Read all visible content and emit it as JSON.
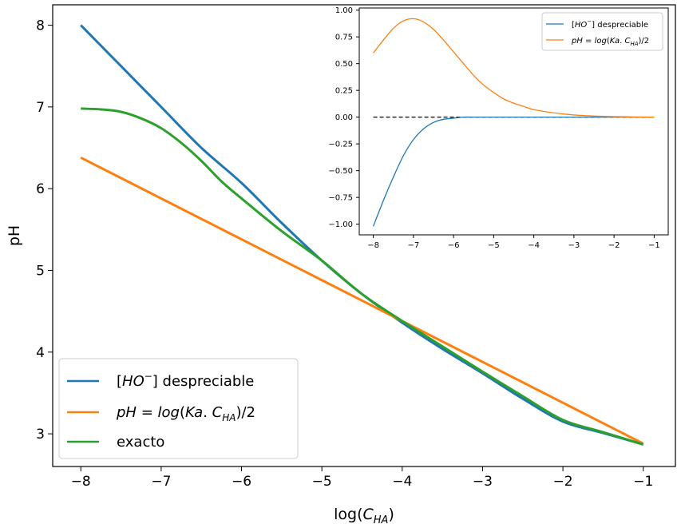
{
  "colors": {
    "despreciable": "#1f77b4",
    "aproximada": "#ff7f0e",
    "exacto": "#2ca02c",
    "reference": "#000000"
  },
  "chart_data": [
    {
      "type": "line",
      "xlabel": "log(C_HA)",
      "ylabel": "pH",
      "xlim": [
        -8.35,
        -0.6
      ],
      "ylim": [
        2.6,
        8.25
      ],
      "xticks": [
        -8,
        -7,
        -6,
        -5,
        -4,
        -3,
        -2,
        -1
      ],
      "yticks": [
        3,
        4,
        5,
        6,
        7,
        8
      ],
      "xtick_labels": [
        "−8",
        "−7",
        "−6",
        "−5",
        "−4",
        "−3",
        "−2",
        "−1"
      ],
      "ytick_labels": [
        "3",
        "4",
        "5",
        "6",
        "7",
        "8"
      ],
      "legend_position": "lower-left",
      "series": [
        {
          "name": "[HO⁻] despreciable",
          "color_key": "despreciable",
          "x": [
            -8,
            -7.5,
            -7,
            -6.5,
            -6,
            -5.5,
            -5,
            -4.5,
            -4,
            -3.5,
            -3,
            -2.5,
            -2,
            -1.5,
            -1
          ],
          "y": [
            8.0,
            7.5,
            7.0,
            6.5,
            6.07,
            5.58,
            5.12,
            4.71,
            4.36,
            4.04,
            3.74,
            3.43,
            3.15,
            3.01,
            2.87
          ]
        },
        {
          "name": "pH = log(Ka.C_HA)/2",
          "color_key": "aproximada",
          "x": [
            -8,
            -7,
            -6,
            -5,
            -4,
            -3,
            -2,
            -1
          ],
          "y": [
            6.38,
            5.88,
            5.38,
            4.88,
            4.38,
            3.88,
            3.38,
            2.88
          ]
        },
        {
          "name": "exacto",
          "color_key": "exacto",
          "x": [
            -8,
            -7.75,
            -7.5,
            -7.25,
            -7,
            -6.75,
            -6.5,
            -6.25,
            -6,
            -5.5,
            -5,
            -4.5,
            -4,
            -3.5,
            -3,
            -2.5,
            -2,
            -1.5,
            -1
          ],
          "y": [
            6.98,
            6.97,
            6.94,
            6.86,
            6.74,
            6.56,
            6.34,
            6.09,
            5.88,
            5.48,
            5.12,
            4.71,
            4.38,
            4.07,
            3.76,
            3.46,
            3.17,
            3.02,
            2.87
          ]
        }
      ]
    },
    {
      "type": "line",
      "xlim": [
        -8.35,
        -0.65
      ],
      "ylim": [
        -1.1,
        1.02
      ],
      "xticks": [
        -8,
        -7,
        -6,
        -5,
        -4,
        -3,
        -2,
        -1
      ],
      "yticks": [
        -1.0,
        -0.75,
        -0.5,
        -0.25,
        0.0,
        0.25,
        0.5,
        0.75,
        1.0
      ],
      "xtick_labels": [
        "−8",
        "−7",
        "−6",
        "−5",
        "−4",
        "−3",
        "−2",
        "−1"
      ],
      "ytick_labels": [
        "−1.00",
        "−0.75",
        "−0.50",
        "−0.25",
        "0.00",
        "0.25",
        "0.50",
        "0.75",
        "1.00"
      ],
      "legend_position": "top-right",
      "reference_line": {
        "y": 0,
        "style": "dashed"
      },
      "series": [
        {
          "name": "[HO⁻] despreciable",
          "color_key": "despreciable",
          "x": [
            -8,
            -7.75,
            -7.5,
            -7.25,
            -7,
            -6.75,
            -6.5,
            -6.25,
            -6,
            -5.75,
            -5.5,
            -5,
            -4,
            -3,
            -2,
            -1
          ],
          "y": [
            -1.02,
            -0.78,
            -0.56,
            -0.36,
            -0.21,
            -0.11,
            -0.05,
            -0.02,
            -0.01,
            0.0,
            0.0,
            0.0,
            0.0,
            0.0,
            0.0,
            0.0
          ]
        },
        {
          "name": "pH = log(Ka.C_HA)/2",
          "color_key": "aproximada",
          "x": [
            -8,
            -7.75,
            -7.5,
            -7.25,
            -7,
            -6.75,
            -6.5,
            -6.25,
            -6,
            -5.75,
            -5.5,
            -5.25,
            -5,
            -4.75,
            -4.5,
            -4.25,
            -4,
            -3.5,
            -3,
            -2.5,
            -2,
            -1.5,
            -1
          ],
          "y": [
            0.6,
            0.72,
            0.83,
            0.9,
            0.92,
            0.89,
            0.82,
            0.72,
            0.61,
            0.5,
            0.39,
            0.3,
            0.23,
            0.17,
            0.13,
            0.1,
            0.07,
            0.04,
            0.02,
            0.01,
            0.005,
            0.002,
            0.0
          ]
        }
      ]
    }
  ]
}
